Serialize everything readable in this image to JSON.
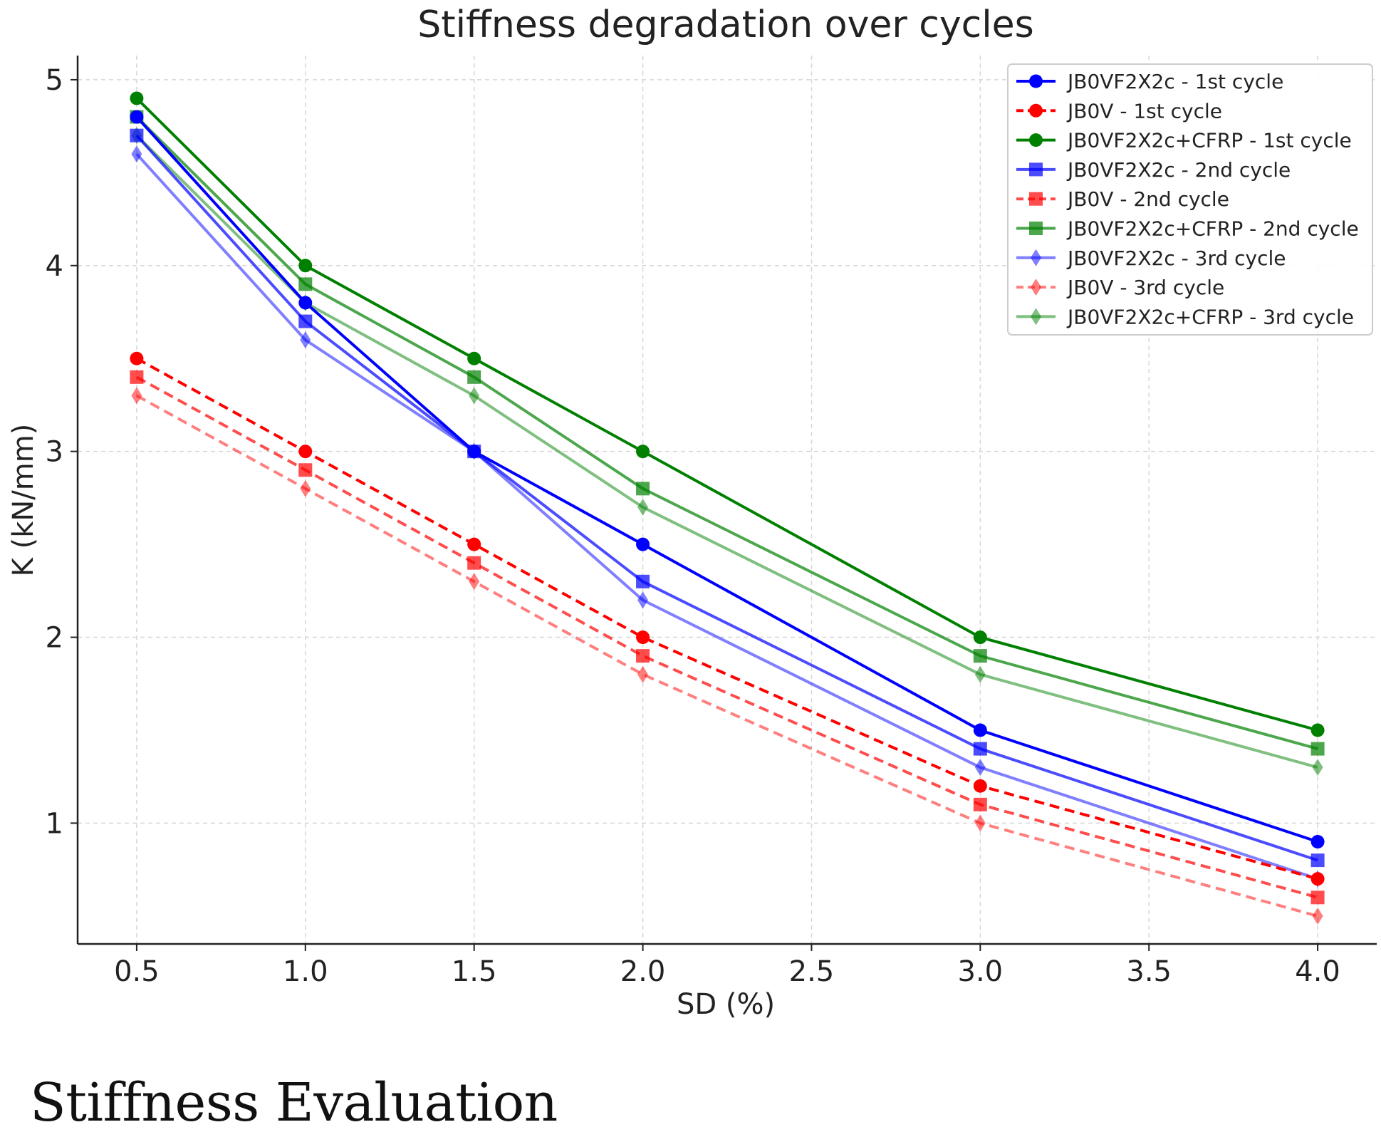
{
  "chart_data": {
    "type": "line",
    "title": "Stiffness degradation over cycles",
    "xlabel": "SD (%)",
    "ylabel": "K (kN/mm)",
    "x": [
      0.5,
      1.0,
      1.5,
      2.0,
      3.0,
      4.0
    ],
    "xlim": [
      0.325,
      4.175
    ],
    "ylim": [
      0.35,
      5.13
    ],
    "xticks": [
      "0.5",
      "1.0",
      "1.5",
      "2.0",
      "2.5",
      "3.0",
      "3.5",
      "4.0"
    ],
    "yticks": [
      "1",
      "2",
      "3",
      "4",
      "5"
    ],
    "grid": true,
    "legend_position": "top-right",
    "series": [
      {
        "name": "JB0VF2X2c - 1st cycle",
        "color": "#0000ff",
        "marker": "circle",
        "dashed": false,
        "opacity": 1,
        "values": [
          4.8,
          3.8,
          3.0,
          2.5,
          1.5,
          0.9
        ]
      },
      {
        "name": "JB0V - 1st cycle",
        "color": "#ff0000",
        "marker": "circle",
        "dashed": true,
        "opacity": 1,
        "values": [
          3.5,
          3.0,
          2.5,
          2.0,
          1.2,
          0.7
        ]
      },
      {
        "name": "JB0VF2X2c+CFRP - 1st cycle",
        "color": "#008000",
        "marker": "circle",
        "dashed": false,
        "opacity": 1,
        "values": [
          4.9,
          4.0,
          3.5,
          3.0,
          2.0,
          1.5
        ]
      },
      {
        "name": "JB0VF2X2c - 2nd cycle",
        "color": "#0000ff",
        "marker": "square",
        "dashed": false,
        "opacity": 0.7,
        "values": [
          4.7,
          3.7,
          3.0,
          2.3,
          1.4,
          0.8
        ]
      },
      {
        "name": "JB0V - 2nd cycle",
        "color": "#ff0000",
        "marker": "square",
        "dashed": true,
        "opacity": 0.7,
        "values": [
          3.4,
          2.9,
          2.4,
          1.9,
          1.1,
          0.6
        ]
      },
      {
        "name": "JB0VF2X2c+CFRP - 2nd cycle",
        "color": "#008000",
        "marker": "square",
        "dashed": false,
        "opacity": 0.7,
        "values": [
          4.8,
          3.9,
          3.4,
          2.8,
          1.9,
          1.4
        ]
      },
      {
        "name": "JB0VF2X2c - 3rd cycle",
        "color": "#0000ff",
        "marker": "diamond",
        "dashed": false,
        "opacity": 0.5,
        "values": [
          4.6,
          3.6,
          3.0,
          2.2,
          1.3,
          0.7
        ]
      },
      {
        "name": "JB0V - 3rd cycle",
        "color": "#ff0000",
        "marker": "diamond",
        "dashed": true,
        "opacity": 0.5,
        "values": [
          3.3,
          2.8,
          2.3,
          1.8,
          1.0,
          0.5
        ]
      },
      {
        "name": "JB0VF2X2c+CFRP - 3rd cycle",
        "color": "#008000",
        "marker": "diamond",
        "dashed": false,
        "opacity": 0.5,
        "values": [
          4.7,
          3.8,
          3.3,
          2.7,
          1.8,
          1.3
        ]
      }
    ]
  },
  "caption": "Stiffness Evaluation"
}
